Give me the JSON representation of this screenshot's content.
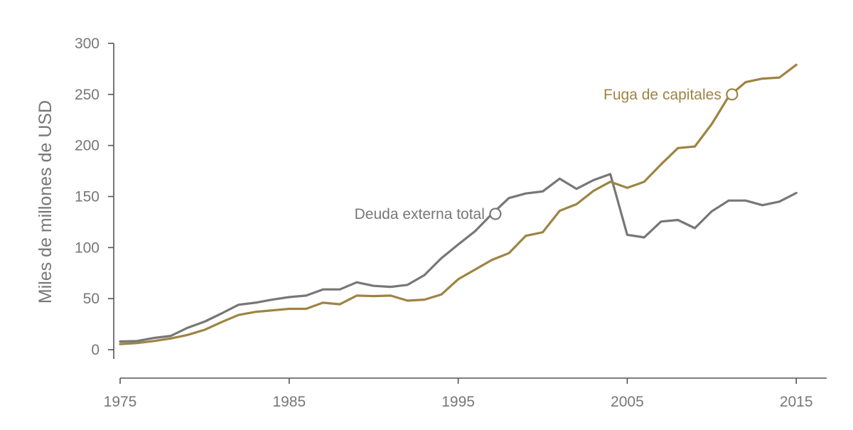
{
  "chart_data": {
    "type": "line",
    "title": "",
    "xlabel": "",
    "ylabel": "Miles de millones de USD",
    "xlim": [
      1975,
      2016.8
    ],
    "ylim": [
      0,
      300
    ],
    "x_ticks": [
      1975,
      1985,
      1995,
      2005,
      2015
    ],
    "x_tick_labels": [
      "1975",
      "1985",
      "1995",
      "2005",
      "2015"
    ],
    "y_ticks": [
      0,
      50,
      100,
      150,
      200,
      250,
      300
    ],
    "y_tick_labels": [
      "0",
      "50",
      "100",
      "150",
      "200",
      "250",
      "300"
    ],
    "grid": false,
    "legend": "none",
    "x": [
      1975,
      1976,
      1977,
      1978,
      1979,
      1980,
      1981,
      1982,
      1983,
      1984,
      1985,
      1986,
      1987,
      1988,
      1989,
      1990,
      1991,
      1992,
      1993,
      1994,
      1995,
      1996,
      1997,
      1998,
      1999,
      2000,
      2001,
      2002,
      2003,
      2004,
      2005,
      2006,
      2007,
      2008,
      2009,
      2010,
      2011,
      2012,
      2013,
      2014,
      2015
    ],
    "series": [
      {
        "name": "Deuda externa total",
        "color": "#777777",
        "values": [
          8,
          8.5,
          11.5,
          13.5,
          21.5,
          27.5,
          35.5,
          44,
          46,
          49,
          51.5,
          53,
          59,
          59,
          66,
          62.5,
          61.5,
          63.5,
          73,
          89.5,
          103,
          116,
          133,
          148.5,
          153,
          155,
          167.5,
          157.5,
          166,
          172,
          112.5,
          110,
          125.5,
          127,
          119,
          135.5,
          146,
          146,
          141.5,
          145,
          153.5
        ]
      },
      {
        "name": "Fuga de capitales",
        "color": "#9e8442",
        "values": [
          5.5,
          6.5,
          8.5,
          11,
          14.5,
          19.5,
          27,
          34,
          37,
          38.5,
          40,
          40,
          46,
          44.5,
          53,
          52.5,
          53,
          48,
          49,
          54,
          69,
          78.5,
          88,
          94.5,
          111.5,
          115,
          136,
          142.5,
          155.5,
          164.5,
          158.5,
          164.5,
          181.5,
          197.5,
          199,
          221,
          248,
          262,
          265.5,
          266.5,
          279
        ]
      }
    ],
    "annotations": [
      {
        "series": "Deuda externa total",
        "label": "Deuda externa total",
        "x": 1997.2,
        "y": 133
      },
      {
        "series": "Fuga de capitales",
        "label": "Fuga de capitales",
        "x": 2011.2,
        "y": 250
      }
    ]
  }
}
